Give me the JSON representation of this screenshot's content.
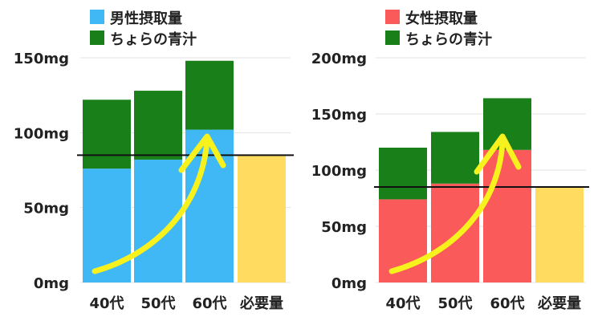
{
  "chart_data": [
    {
      "type": "bar",
      "stacked": true,
      "categories": [
        "40代",
        "50代",
        "60代",
        "必要量"
      ],
      "series": [
        {
          "name": "男性摂取量",
          "values": [
            76,
            82,
            102,
            0
          ],
          "color": "#3fb8f5"
        },
        {
          "name": "ちょらの青汁",
          "values": [
            46,
            46,
            46,
            0
          ],
          "color": "#198019"
        },
        {
          "name": "",
          "values": [
            0,
            0,
            0,
            85
          ],
          "color": "#ffdc5f"
        }
      ],
      "reference_line": 85,
      "ylim": [
        0,
        150
      ],
      "yticks": [
        "0mg",
        "50mg",
        "100mg",
        "150mg"
      ],
      "grid": true,
      "legend": "top",
      "annotation": "yellow-upward-arrow"
    },
    {
      "type": "bar",
      "stacked": true,
      "categories": [
        "40代",
        "50代",
        "60代",
        "必要量"
      ],
      "series": [
        {
          "name": "女性摂取量",
          "values": [
            74,
            88,
            118,
            0
          ],
          "color": "#fb5a5a"
        },
        {
          "name": "ちょらの青汁",
          "values": [
            46,
            46,
            46,
            0
          ],
          "color": "#198019"
        },
        {
          "name": "",
          "values": [
            0,
            0,
            0,
            85
          ],
          "color": "#ffdc5f"
        }
      ],
      "reference_line": 85,
      "ylim": [
        0,
        200
      ],
      "yticks": [
        "0mg",
        "50mg",
        "100mg",
        "150mg",
        "200mg"
      ],
      "grid": true,
      "legend": "top",
      "annotation": "yellow-upward-arrow"
    }
  ]
}
